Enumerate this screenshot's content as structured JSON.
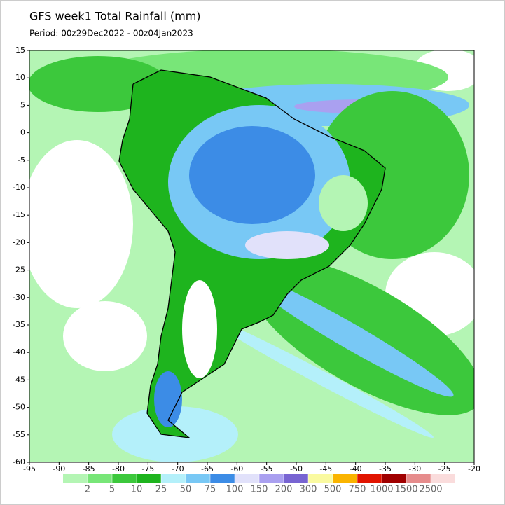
{
  "title": "GFS week1 Total Rainfall (mm)",
  "period": "Period: 00z29Dec2022 - 00z04Jan2023",
  "map": {
    "xlim": [
      -95,
      -20
    ],
    "ylim": [
      -60,
      15
    ],
    "xticks": [
      -95,
      -90,
      -85,
      -80,
      -75,
      -70,
      -65,
      -60,
      -55,
      -50,
      -45,
      -40,
      -35,
      -30,
      -25,
      -20
    ],
    "yticks": [
      15,
      10,
      5,
      0,
      -5,
      -10,
      -15,
      -20,
      -25,
      -30,
      -35,
      -40,
      -45,
      -50,
      -55,
      -60
    ]
  },
  "colorbar": {
    "levels": [
      2,
      5,
      10,
      25,
      50,
      75,
      100,
      150,
      200,
      300,
      500,
      750,
      1000,
      1500,
      2500
    ],
    "colors": [
      "#b4f5b4",
      "#78e678",
      "#3cc83c",
      "#1eb41e",
      "#b4f0fa",
      "#78c8f5",
      "#3c8ce6",
      "#e1e1fa",
      "#aaa0f0",
      "#7864d2",
      "#fafaa0",
      "#fab400",
      "#e11400",
      "#a00000",
      "#e68c8c",
      "#fadcdc"
    ]
  }
}
